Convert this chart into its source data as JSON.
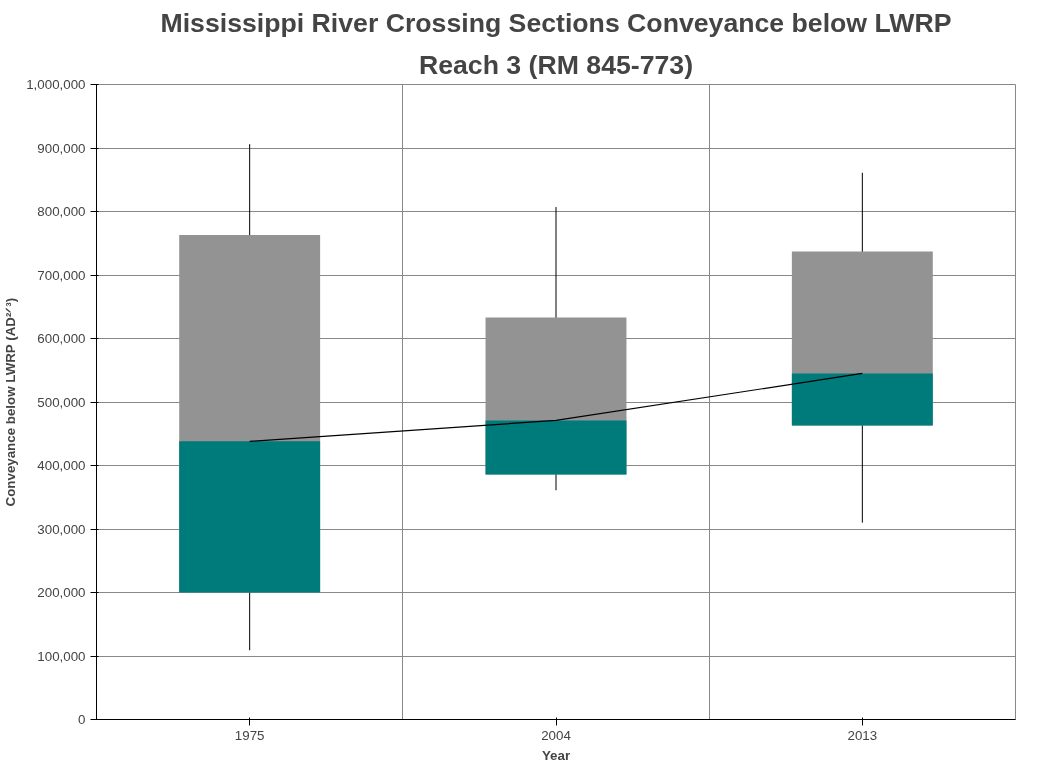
{
  "chart_data": {
    "type": "box",
    "title": "Mississippi River Crossing Sections Conveyance below LWRP",
    "subtitle": "Reach 3 (RM 845-773)",
    "xlabel": "Year",
    "ylabel": "Conveyance below LWRP (AD²ᐟ³)",
    "categories": [
      "1975",
      "2004",
      "2013"
    ],
    "series": [
      {
        "type": "box",
        "color": "#007b7b",
        "colors": [
          "#939393",
          "#939393",
          "#939393"
        ],
        "boxes": [
          {
            "low": 109000,
            "q1": 200000,
            "median": 438000,
            "q3": 763000,
            "high": 906000
          },
          {
            "low": 361000,
            "q1": 386000,
            "median": 471000,
            "q3": 633000,
            "high": 807000
          },
          {
            "low": 310000,
            "q1": 463000,
            "median": 545000,
            "q3": 737000,
            "high": 861000
          }
        ]
      },
      {
        "type": "line",
        "color": "#000000",
        "values": [
          438000,
          471000,
          545000
        ]
      }
    ],
    "ylim": [
      0,
      1000000
    ],
    "yticks": [
      {
        "value": 0,
        "label": "0"
      },
      {
        "value": 100000,
        "label": "100,000"
      },
      {
        "value": 200000,
        "label": "200,000"
      },
      {
        "value": 300000,
        "label": "300,000"
      },
      {
        "value": 400000,
        "label": "400,000"
      },
      {
        "value": 500000,
        "label": "500,000"
      },
      {
        "value": 600000,
        "label": "600,000"
      },
      {
        "value": 700000,
        "label": "700,000"
      },
      {
        "value": 800000,
        "label": "800,000"
      },
      {
        "value": 900000,
        "label": "900,000"
      },
      {
        "value": 1000000,
        "label": "1,000,000"
      }
    ],
    "grid": true
  }
}
